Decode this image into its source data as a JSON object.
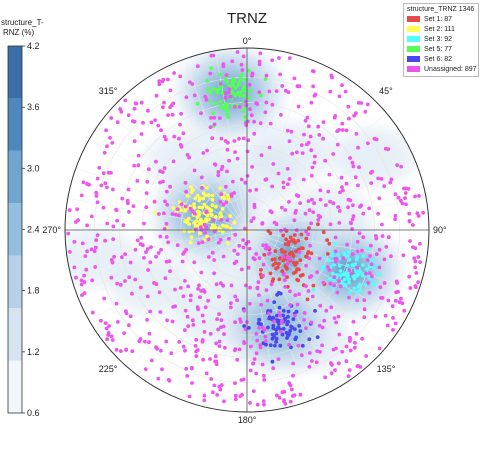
{
  "chart_data": {
    "type": "scatter",
    "projection": "polar stereonet",
    "title": "TRNZ",
    "azimuth_labels": [
      "0°",
      "45°",
      "90°",
      "135°",
      "180°",
      "225°",
      "270°",
      "315°"
    ],
    "colorbar": {
      "title_lines": [
        "structure_T-",
        "RNZ (%)"
      ],
      "ticks": [
        "0.6",
        "1.2",
        "1.8",
        "2.4",
        "3.0",
        "3.6",
        "4.2"
      ],
      "range": [
        0.6,
        4.2
      ],
      "colors": [
        "#f2f6fb",
        "#d6e4f1",
        "#b7d2e8",
        "#94bedd",
        "#6fa5cf",
        "#4f88bf",
        "#3b6fa8"
      ]
    },
    "legend": {
      "title": "structure_TRNZ 1346",
      "entries": [
        {
          "label": "Set 1: 87",
          "color": "#e84a4a"
        },
        {
          "label": "Set 2: 111",
          "color": "#ffff55"
        },
        {
          "label": "Set 3: 92",
          "color": "#55ffff"
        },
        {
          "label": "Set 5: 77",
          "color": "#55ff55"
        },
        {
          "label": "Set 6: 82",
          "color": "#4848ee"
        },
        {
          "label": "Unassigned: 897",
          "color": "#ee55ee"
        }
      ]
    },
    "clusters": [
      {
        "set": "Set 1",
        "count": 87,
        "center_azimuth_deg": 120,
        "center_radius": 0.28,
        "spread": 0.09
      },
      {
        "set": "Set 2",
        "count": 111,
        "center_azimuth_deg": 290,
        "center_radius": 0.24,
        "spread": 0.085
      },
      {
        "set": "Set 3",
        "count": 92,
        "center_azimuth_deg": 112,
        "center_radius": 0.6,
        "spread": 0.07
      },
      {
        "set": "Set 5",
        "count": 77,
        "center_azimuth_deg": 353,
        "center_radius": 0.76,
        "spread": 0.075
      },
      {
        "set": "Set 6",
        "count": 82,
        "center_azimuth_deg": 162,
        "center_radius": 0.55,
        "spread": 0.075
      },
      {
        "set": "Unassigned",
        "count": 897,
        "distribution": "scattered"
      }
    ],
    "density_contours": [
      {
        "azimuth_deg": 120,
        "radius": 0.3,
        "level": 4.2
      },
      {
        "azimuth_deg": 112,
        "radius": 0.6,
        "level": 3.6
      },
      {
        "azimuth_deg": 290,
        "radius": 0.24,
        "level": 3.0
      },
      {
        "azimuth_deg": 353,
        "radius": 0.76,
        "level": 3.0
      },
      {
        "azimuth_deg": 162,
        "radius": 0.55,
        "level": 2.4
      }
    ]
  }
}
